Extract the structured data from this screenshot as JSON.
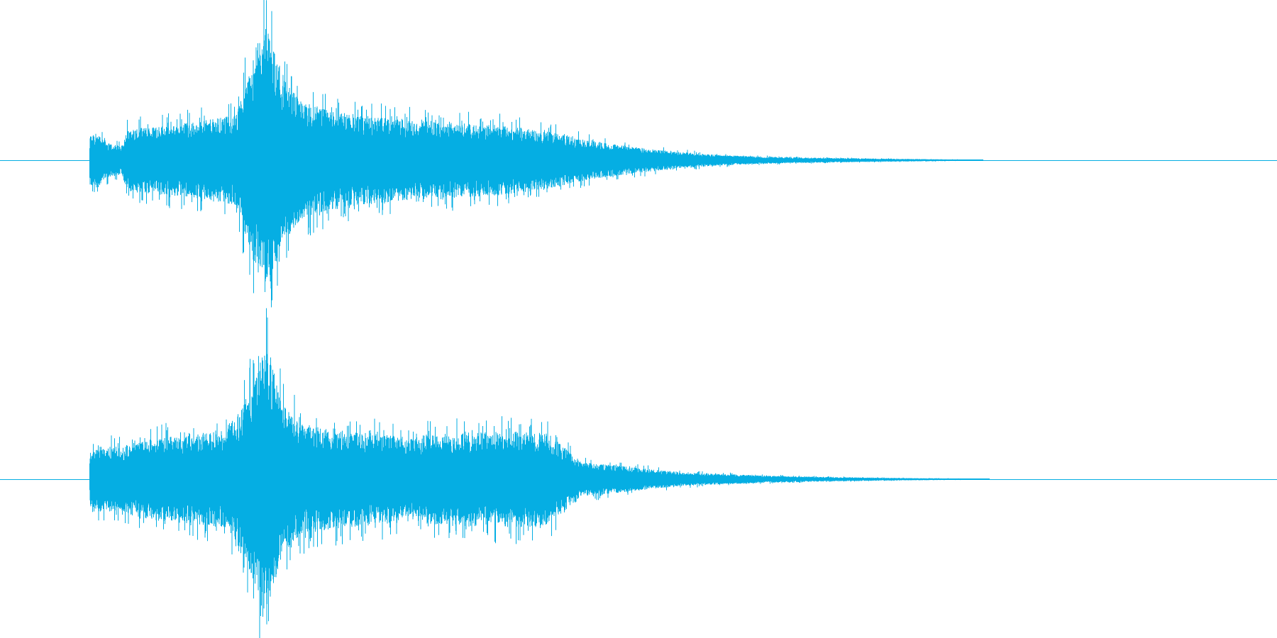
{
  "waveform": {
    "color": "#05aee3",
    "background": "#ffffff",
    "channels": [
      {
        "name": "left",
        "envelope": [
          [
            0.0,
            0.0
          ],
          [
            0.07,
            0.0
          ],
          [
            0.0705,
            0.18
          ],
          [
            0.075,
            0.2
          ],
          [
            0.085,
            0.12
          ],
          [
            0.095,
            0.1
          ],
          [
            0.1,
            0.22
          ],
          [
            0.12,
            0.24
          ],
          [
            0.14,
            0.26
          ],
          [
            0.16,
            0.28
          ],
          [
            0.185,
            0.32
          ],
          [
            0.192,
            0.55
          ],
          [
            0.2,
            0.75
          ],
          [
            0.206,
            0.98
          ],
          [
            0.212,
            0.85
          ],
          [
            0.22,
            0.6
          ],
          [
            0.235,
            0.42
          ],
          [
            0.255,
            0.36
          ],
          [
            0.28,
            0.32
          ],
          [
            0.31,
            0.29
          ],
          [
            0.34,
            0.27
          ],
          [
            0.37,
            0.26
          ],
          [
            0.4,
            0.24
          ],
          [
            0.43,
            0.2
          ],
          [
            0.46,
            0.14
          ],
          [
            0.49,
            0.1
          ],
          [
            0.52,
            0.07
          ],
          [
            0.55,
            0.045
          ],
          [
            0.58,
            0.03
          ],
          [
            0.62,
            0.02
          ],
          [
            0.68,
            0.012
          ],
          [
            0.74,
            0.006
          ],
          [
            0.765,
            0.003
          ],
          [
            0.77,
            0.0
          ],
          [
            1.0,
            0.0
          ]
        ]
      },
      {
        "name": "right",
        "envelope": [
          [
            0.0,
            0.0
          ],
          [
            0.07,
            0.0
          ],
          [
            0.0705,
            0.2
          ],
          [
            0.08,
            0.24
          ],
          [
            0.095,
            0.22
          ],
          [
            0.105,
            0.26
          ],
          [
            0.125,
            0.3
          ],
          [
            0.15,
            0.32
          ],
          [
            0.175,
            0.34
          ],
          [
            0.19,
            0.5
          ],
          [
            0.2,
            0.75
          ],
          [
            0.206,
            0.98
          ],
          [
            0.213,
            0.8
          ],
          [
            0.222,
            0.52
          ],
          [
            0.24,
            0.38
          ],
          [
            0.27,
            0.34
          ],
          [
            0.3,
            0.32
          ],
          [
            0.32,
            0.28
          ],
          [
            0.335,
            0.32
          ],
          [
            0.37,
            0.33
          ],
          [
            0.41,
            0.34
          ],
          [
            0.43,
            0.32
          ],
          [
            0.445,
            0.2
          ],
          [
            0.455,
            0.12
          ],
          [
            0.48,
            0.1
          ],
          [
            0.51,
            0.07
          ],
          [
            0.54,
            0.045
          ],
          [
            0.57,
            0.035
          ],
          [
            0.6,
            0.025
          ],
          [
            0.65,
            0.015
          ],
          [
            0.71,
            0.008
          ],
          [
            0.77,
            0.003
          ],
          [
            0.775,
            0.0
          ],
          [
            1.0,
            0.0
          ]
        ]
      }
    ]
  }
}
